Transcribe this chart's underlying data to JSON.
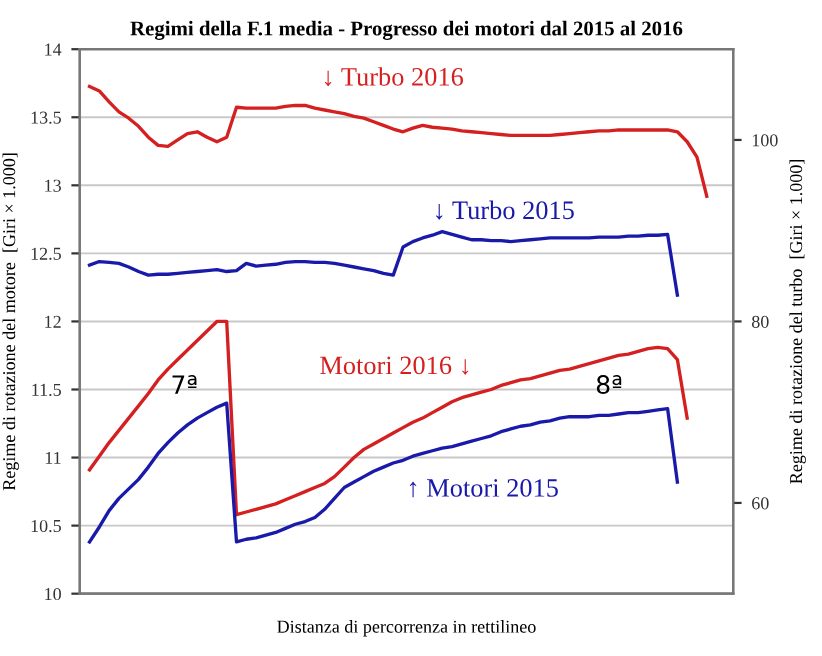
{
  "chart_data": {
    "type": "line",
    "title": "Regimi della F.1 media - Progresso dei motori dal 2015 al 2016",
    "xlabel": "Distanza di percorrenza in rettilineo",
    "ylabel": "Regime di rotazione del motore  [Giri × 1.000]",
    "y2label": "Regime di rotazione del turbo  [Giri × 1.000]",
    "categories": [
      null,
      null,
      null,
      null,
      null,
      null,
      null,
      null,
      null,
      null,
      null,
      null,
      null,
      null,
      null,
      null,
      null,
      null,
      null,
      null,
      null,
      null,
      null,
      null,
      null,
      null,
      null,
      null,
      null,
      null,
      null,
      null,
      null,
      null,
      null,
      null,
      null,
      null,
      null,
      null,
      null,
      null,
      null,
      null,
      null,
      null,
      null,
      null,
      null,
      null,
      null,
      null,
      null,
      null,
      null,
      null,
      null,
      null,
      null,
      null,
      null,
      null,
      null,
      null
    ],
    "ylim": [
      10,
      14
    ],
    "yticks": [
      10,
      10.5,
      11,
      11.5,
      12,
      12.5,
      13,
      13.5,
      14
    ],
    "y2lim": [
      50,
      110
    ],
    "y2ticks": [
      60,
      80,
      100
    ],
    "grid": "y",
    "line_style": "solid",
    "marker": "none",
    "annotations": [
      "7ª",
      "8ª"
    ],
    "series": [
      {
        "name": "↓ Turbo 2016",
        "color": "#d42020",
        "axis": "y2",
        "values": [
          105.9,
          105.4,
          104.2,
          103.1,
          102.4,
          101.5,
          100.3,
          99.4,
          99.3,
          100.0,
          100.7,
          100.9,
          100.3,
          99.8,
          100.3,
          103.6,
          103.5,
          103.5,
          103.5,
          103.5,
          103.7,
          103.8,
          103.8,
          103.5,
          103.3,
          103.1,
          102.9,
          102.6,
          102.4,
          102.0,
          101.6,
          101.2,
          100.9,
          101.3,
          101.6,
          101.4,
          101.3,
          101.2,
          101.0,
          100.9,
          100.8,
          100.7,
          100.6,
          100.5,
          100.5,
          100.5,
          100.5,
          100.5,
          100.6,
          100.7,
          100.8,
          100.9,
          101.0,
          101.0,
          101.1,
          101.1,
          101.1,
          101.1,
          101.1,
          101.1,
          100.9,
          99.8,
          98.1,
          93.8
        ]
      },
      {
        "name": "↓ Turbo 2015",
        "color": "#1a1aaa",
        "axis": "y2",
        "values": [
          86.2,
          86.6,
          86.5,
          86.4,
          86.0,
          85.5,
          85.1,
          85.2,
          85.2,
          85.3,
          85.4,
          85.5,
          85.6,
          85.7,
          85.5,
          85.6,
          86.4,
          86.1,
          86.2,
          86.3,
          86.5,
          86.6,
          86.6,
          86.5,
          86.5,
          86.4,
          86.2,
          86.0,
          85.8,
          85.6,
          85.3,
          85.1,
          88.2,
          88.8,
          89.2,
          89.5,
          89.9,
          89.6,
          89.3,
          89.0,
          89.0,
          88.9,
          88.9,
          88.8,
          88.9,
          89.0,
          89.1,
          89.2,
          89.2,
          89.2,
          89.2,
          89.2,
          89.3,
          89.3,
          89.3,
          89.4,
          89.4,
          89.5,
          89.5,
          89.6,
          82.9,
          null,
          null,
          null
        ]
      },
      {
        "name": "Motori 2016 ↓",
        "color": "#d42020",
        "values": [
          10.91,
          11.01,
          11.11,
          11.2,
          11.29,
          11.38,
          11.47,
          11.57,
          11.65,
          11.72,
          11.79,
          11.86,
          11.93,
          12.0,
          12.0,
          10.58,
          10.6,
          10.62,
          10.64,
          10.66,
          10.69,
          10.72,
          10.75,
          10.78,
          10.81,
          10.86,
          10.93,
          11.0,
          11.06,
          11.1,
          11.14,
          11.18,
          11.22,
          11.26,
          11.29,
          11.33,
          11.37,
          11.41,
          11.44,
          11.46,
          11.48,
          11.5,
          11.53,
          11.55,
          11.57,
          11.58,
          11.6,
          11.62,
          11.64,
          11.65,
          11.67,
          11.69,
          11.71,
          11.73,
          11.75,
          11.76,
          11.78,
          11.8,
          11.81,
          11.8,
          11.72,
          11.29,
          null,
          null
        ]
      },
      {
        "name": "↑ Motori 2015",
        "color": "#1a1aaa",
        "values": [
          10.38,
          10.49,
          10.61,
          10.7,
          10.77,
          10.84,
          10.93,
          11.03,
          11.11,
          11.18,
          11.24,
          11.29,
          11.33,
          11.37,
          11.4,
          10.38,
          10.4,
          10.41,
          10.43,
          10.45,
          10.48,
          10.51,
          10.53,
          10.56,
          10.62,
          10.7,
          10.78,
          10.82,
          10.86,
          10.9,
          10.93,
          10.96,
          10.98,
          11.01,
          11.03,
          11.05,
          11.07,
          11.08,
          11.1,
          11.12,
          11.14,
          11.16,
          11.19,
          11.21,
          11.23,
          11.24,
          11.26,
          11.27,
          11.29,
          11.3,
          11.3,
          11.3,
          11.31,
          11.31,
          11.32,
          11.33,
          11.33,
          11.34,
          11.35,
          11.36,
          10.82,
          null,
          null,
          null
        ]
      }
    ]
  }
}
